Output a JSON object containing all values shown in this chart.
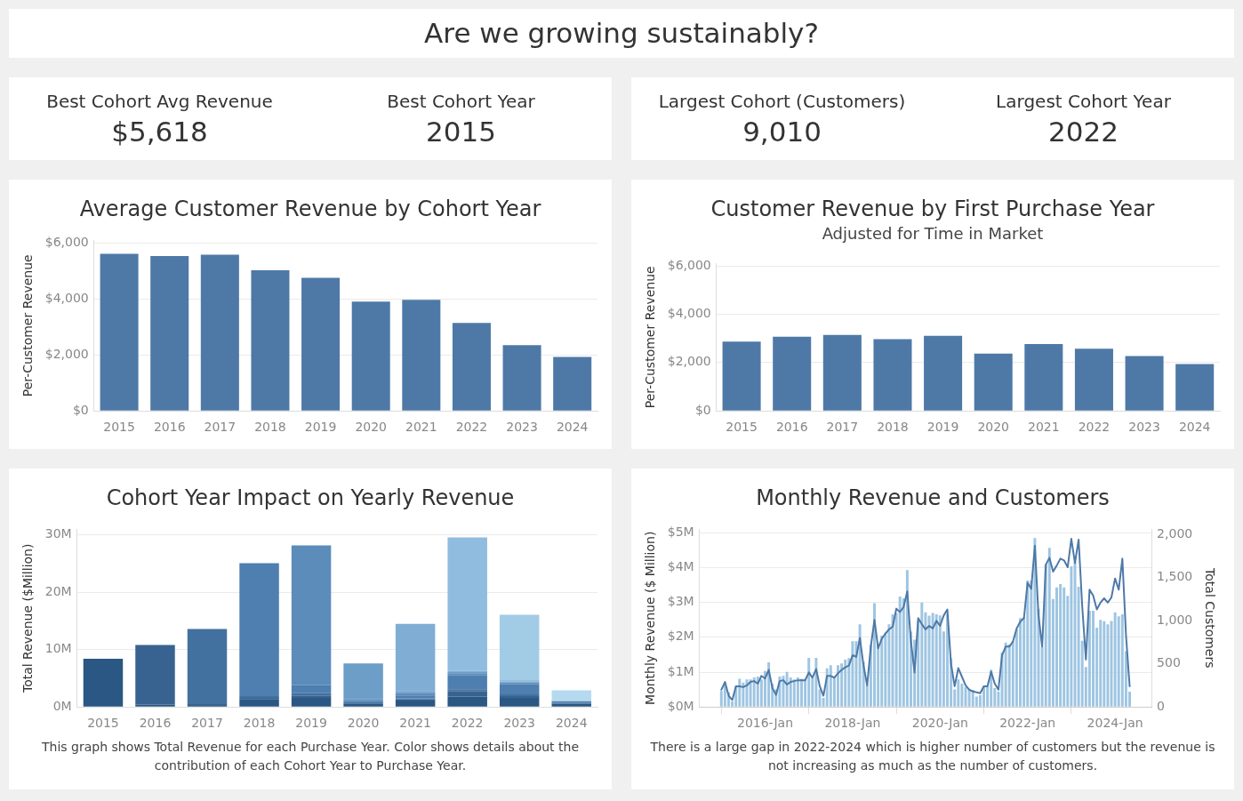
{
  "chart_data": [
    {
      "type": "other",
      "title": "Are we growing sustainably?"
    },
    {
      "type": "other",
      "annotations": [
        "Best Cohort Avg Revenue",
        "$5,618",
        "Best Cohort Year",
        "2015"
      ]
    },
    {
      "type": "other",
      "annotations": [
        "Largest Cohort (Customers)",
        "9,010",
        "Largest Cohort Year",
        "2022"
      ]
    },
    {
      "type": "bar",
      "title": "Average Customer Revenue by Cohort Year",
      "ylabel": "Per-Customer Revenue",
      "categories": [
        "2015",
        "2016",
        "2017",
        "2018",
        "2019",
        "2020",
        "2021",
        "2022",
        "2023",
        "2024"
      ],
      "values": [
        5620,
        5540,
        5590,
        5030,
        4760,
        3910,
        3970,
        3150,
        2350,
        1930
      ],
      "color": "#4e79a7",
      "ylim": [
        0,
        6100
      ],
      "yticks": [
        {
          "value": 0,
          "label": "$0"
        },
        {
          "value": 2000,
          "label": "$2,000"
        },
        {
          "value": 4000,
          "label": "$4,000"
        },
        {
          "value": 6000,
          "label": "$6,000"
        }
      ],
      "grid": "y"
    },
    {
      "type": "bar",
      "title": "Customer Revenue by First Purchase Year",
      "subtitle": "Adjusted for Time in Market",
      "ylabel": "Per-Customer Revenue",
      "categories": [
        "2015",
        "2016",
        "2017",
        "2018",
        "2019",
        "2020",
        "2021",
        "2022",
        "2023",
        "2024"
      ],
      "values": [
        2870,
        3070,
        3140,
        2970,
        3110,
        2370,
        2770,
        2570,
        2270,
        1940
      ],
      "color": "#4e79a7",
      "ylim": [
        0,
        6100
      ],
      "yticks": [
        {
          "value": 0,
          "label": "$0"
        },
        {
          "value": 2000,
          "label": "$2,000"
        },
        {
          "value": 4000,
          "label": "$4,000"
        },
        {
          "value": 6000,
          "label": "$6,000"
        }
      ],
      "grid": "y"
    },
    {
      "type": "bar",
      "title": "Cohort Year Impact on Yearly Revenue",
      "ylabel": "Total Revenue ($Million)",
      "stacked": true,
      "categories": [
        "2015",
        "2016",
        "2017",
        "2018",
        "2019",
        "2020",
        "2021",
        "2022",
        "2023",
        "2024"
      ],
      "series": [
        {
          "color": "#2a5783",
          "values": [
            8.4,
            0.4,
            0.2,
            1.3,
            1.6,
            0.6,
            1.1,
            1.8,
            1.6,
            0.5
          ]
        },
        {
          "color": "#386390",
          "values": [
            null,
            10.4,
            0.3,
            0.3,
            0.4,
            null,
            0.2,
            0.9,
            0.3,
            0.1
          ]
        },
        {
          "color": "#43719f",
          "values": [
            null,
            null,
            13.1,
            0.3,
            0.4,
            null,
            0.2,
            0.4,
            0.3,
            0.1
          ]
        },
        {
          "color": "#4e7fb0",
          "values": [
            null,
            null,
            null,
            23.2,
            1.4,
            0.4,
            0.5,
            2.4,
            1.8,
            0.3
          ]
        },
        {
          "color": "#5b8cba",
          "values": [
            null,
            null,
            null,
            null,
            24.4,
            0.3,
            0.4,
            0.4,
            0.3,
            null
          ]
        },
        {
          "color": "#6d9ec8",
          "values": [
            null,
            null,
            null,
            null,
            null,
            6.3,
            0.3,
            0.2,
            null,
            null
          ]
        },
        {
          "color": "#80add4",
          "values": [
            null,
            null,
            null,
            null,
            null,
            null,
            11.8,
            0.2,
            0.2,
            null
          ]
        },
        {
          "color": "#90bcdf",
          "values": [
            null,
            null,
            null,
            null,
            null,
            null,
            null,
            23.3,
            0.2,
            null
          ]
        },
        {
          "color": "#a2cbe6",
          "values": [
            null,
            null,
            null,
            null,
            null,
            null,
            null,
            null,
            11.4,
            null
          ]
        },
        {
          "color": "#b5daf0",
          "values": [
            null,
            null,
            null,
            null,
            null,
            null,
            null,
            null,
            null,
            1.9
          ]
        }
      ],
      "ylim": [
        0,
        31
      ],
      "yticks": [
        {
          "value": 0,
          "label": "0M"
        },
        {
          "value": 10,
          "label": "10M"
        },
        {
          "value": 20,
          "label": "20M"
        },
        {
          "value": 30,
          "label": "30M"
        }
      ],
      "grid": "y",
      "annotations": [
        "This graph shows Total Revenue for each Purchase Year.  Color shows details about the contribution of each Cohort Year to Purchase Year."
      ]
    },
    {
      "type": "bar",
      "title": "Monthly Revenue and Customers",
      "ylabel": "Monthly Revenue ($ Million)",
      "y2label": "Total Customers",
      "x": [
        "2015-01",
        "2015-02",
        "2015-03",
        "2015-04",
        "2015-05",
        "2015-06",
        "2015-07",
        "2015-08",
        "2015-09",
        "2015-10",
        "2015-11",
        "2015-12",
        "2016-01",
        "2016-02",
        "2016-03",
        "2016-04",
        "2016-05",
        "2016-06",
        "2016-07",
        "2016-08",
        "2016-09",
        "2016-10",
        "2016-11",
        "2016-12",
        "2017-01",
        "2017-02",
        "2017-03",
        "2017-04",
        "2017-05",
        "2017-06",
        "2017-07",
        "2017-08",
        "2017-09",
        "2017-10",
        "2017-11",
        "2017-12",
        "2018-01",
        "2018-02",
        "2018-03",
        "2018-04",
        "2018-05",
        "2018-06",
        "2018-07",
        "2018-08",
        "2018-09",
        "2018-10",
        "2018-11",
        "2018-12",
        "2019-01",
        "2019-02",
        "2019-03",
        "2019-04",
        "2019-05",
        "2019-06",
        "2019-07",
        "2019-08",
        "2019-09",
        "2019-10",
        "2019-11",
        "2019-12",
        "2020-01",
        "2020-02",
        "2020-03",
        "2020-04",
        "2020-05",
        "2020-06",
        "2020-07",
        "2020-08",
        "2020-09",
        "2020-10",
        "2020-11",
        "2020-12",
        "2021-01",
        "2021-02",
        "2021-03",
        "2021-04",
        "2021-05",
        "2021-06",
        "2021-07",
        "2021-08",
        "2021-09",
        "2021-10",
        "2021-11",
        "2021-12",
        "2022-01",
        "2022-02",
        "2022-03",
        "2022-04",
        "2022-05",
        "2022-06",
        "2022-07",
        "2022-08",
        "2022-09",
        "2022-10",
        "2022-11",
        "2022-12",
        "2023-01",
        "2023-02",
        "2023-03",
        "2023-04",
        "2023-05",
        "2023-06",
        "2023-07",
        "2023-08",
        "2023-09",
        "2023-10",
        "2023-11",
        "2023-12",
        "2024-01",
        "2024-02",
        "2024-03",
        "2024-04",
        "2024-05"
      ],
      "series": [
        {
          "type": "bar",
          "color": "#9ec5e2",
          "values": [
            0.46,
            0.7,
            0.42,
            0.16,
            0.6,
            0.81,
            0.7,
            0.79,
            0.79,
            0.85,
            0.87,
            0.79,
            1.03,
            1.28,
            0.67,
            0.5,
            0.87,
            0.89,
            1.01,
            0.85,
            0.79,
            0.85,
            0.81,
            0.81,
            1.41,
            0.85,
            1.41,
            0.5,
            0.26,
            1.11,
            1.2,
            0.87,
            1.2,
            1.25,
            1.36,
            1.4,
            1.89,
            1.89,
            2.37,
            1.3,
            0.63,
            1.79,
            2.98,
            1.8,
            2.05,
            2.13,
            2.37,
            2.66,
            2.7,
            3.17,
            3.12,
            3.93,
            2.17,
            1.93,
            2.46,
            3.0,
            2.72,
            2.62,
            2.7,
            2.66,
            2.63,
            2.17,
            2.66,
            1.4,
            0.5,
            0.79,
            0.67,
            0.57,
            0.52,
            0.49,
            0.3,
            0.34,
            0.6,
            0.6,
            1.07,
            0.54,
            0.44,
            1.56,
            1.85,
            1.8,
            1.89,
            2.23,
            2.55,
            2.58,
            3.63,
            3.63,
            4.85,
            2.82,
            1.72,
            4.08,
            4.57,
            3.1,
            3.43,
            3.53,
            3.43,
            3.19,
            4.04,
            4.16,
            3.45,
            1.9,
            1.15,
            2.76,
            2.76,
            2.28,
            2.5,
            2.46,
            2.37,
            2.47,
            2.72,
            2.6,
            2.66,
            1.6,
            0.44
          ]
        },
        {
          "type": "line",
          "axis": "y2",
          "color": "#4e79a7",
          "values": [
            200,
            290,
            130,
            80,
            240,
            240,
            230,
            250,
            290,
            300,
            270,
            360,
            330,
            430,
            220,
            140,
            300,
            310,
            260,
            290,
            300,
            310,
            310,
            310,
            400,
            340,
            440,
            240,
            130,
            360,
            360,
            340,
            390,
            430,
            460,
            480,
            600,
            580,
            800,
            480,
            250,
            700,
            1010,
            680,
            790,
            850,
            900,
            930,
            1140,
            1100,
            1160,
            1340,
            760,
            400,
            1030,
            960,
            900,
            940,
            910,
            1000,
            940,
            1060,
            1130,
            500,
            240,
            450,
            350,
            250,
            200,
            180,
            170,
            160,
            240,
            240,
            410,
            270,
            200,
            600,
            700,
            700,
            760,
            910,
            990,
            1030,
            1440,
            1370,
            1870,
            1060,
            700,
            1650,
            1730,
            1570,
            1640,
            1720,
            1700,
            1620,
            1950,
            1670,
            1940,
            1160,
            550,
            1360,
            1290,
            1130,
            1210,
            1260,
            1210,
            1270,
            1490,
            1360,
            1720,
            830,
            240
          ]
        }
      ],
      "xlim": [
        "2014-07",
        "2024-11"
      ],
      "xticks": [
        {
          "value": "2016-01",
          "label": "2016-Jan"
        },
        {
          "value": "2018-01",
          "label": "2018-Jan"
        },
        {
          "value": "2020-01",
          "label": "2020-Jan"
        },
        {
          "value": "2022-01",
          "label": "2022-Jan"
        },
        {
          "value": "2024-01",
          "label": "2024-Jan"
        }
      ],
      "ylim": [
        0,
        5.1
      ],
      "yticks": [
        {
          "value": 0,
          "label": "$0M"
        },
        {
          "value": 1,
          "label": "$1M"
        },
        {
          "value": 2,
          "label": "$2M"
        },
        {
          "value": 3,
          "label": "$3M"
        },
        {
          "value": 4,
          "label": "$4M"
        },
        {
          "value": 5,
          "label": "$5M"
        }
      ],
      "y2lim": [
        0,
        2060
      ],
      "y2ticks": [
        0,
        500,
        {
          "value": 1000,
          "label": "1,000"
        },
        {
          "value": 1500,
          "label": "1,500"
        },
        {
          "value": 2000,
          "label": "2,000"
        }
      ],
      "grid": "y",
      "annotations": [
        "There is a large gap in 2022-2024 which is higher number of customers but the revenue is not increasing as much as the number of customers."
      ]
    }
  ]
}
